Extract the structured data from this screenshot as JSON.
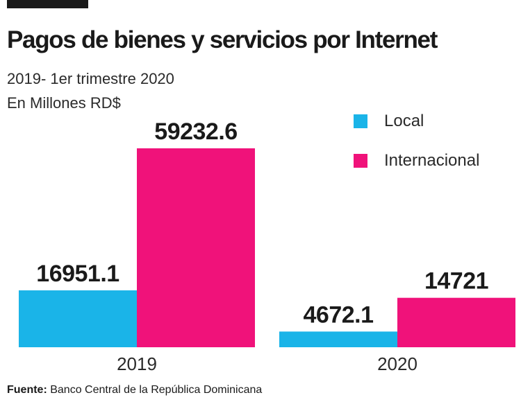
{
  "chart_data": {
    "type": "bar",
    "title": "Pagos de bienes y servicios por Internet",
    "subtitle": "2019- 1er trimestre 2020",
    "ylabel": "En Millones RD$",
    "categories": [
      "2019",
      "2020"
    ],
    "series": [
      {
        "name": "Local",
        "color": "#1ab4e8",
        "values": [
          16951.1,
          4672.1
        ],
        "labels": [
          "16951.1",
          "4672.1"
        ]
      },
      {
        "name": "Internacional",
        "color": "#f0127a",
        "values": [
          59232.6,
          14721
        ],
        "labels": [
          "59232.6",
          "14721"
        ]
      }
    ],
    "ylim": [
      0,
      59232.6
    ],
    "grid": false,
    "legend_position": "top-right"
  },
  "footer": {
    "source_label": "Fuente:",
    "source_text": "Banco Central de la República Dominicana"
  }
}
